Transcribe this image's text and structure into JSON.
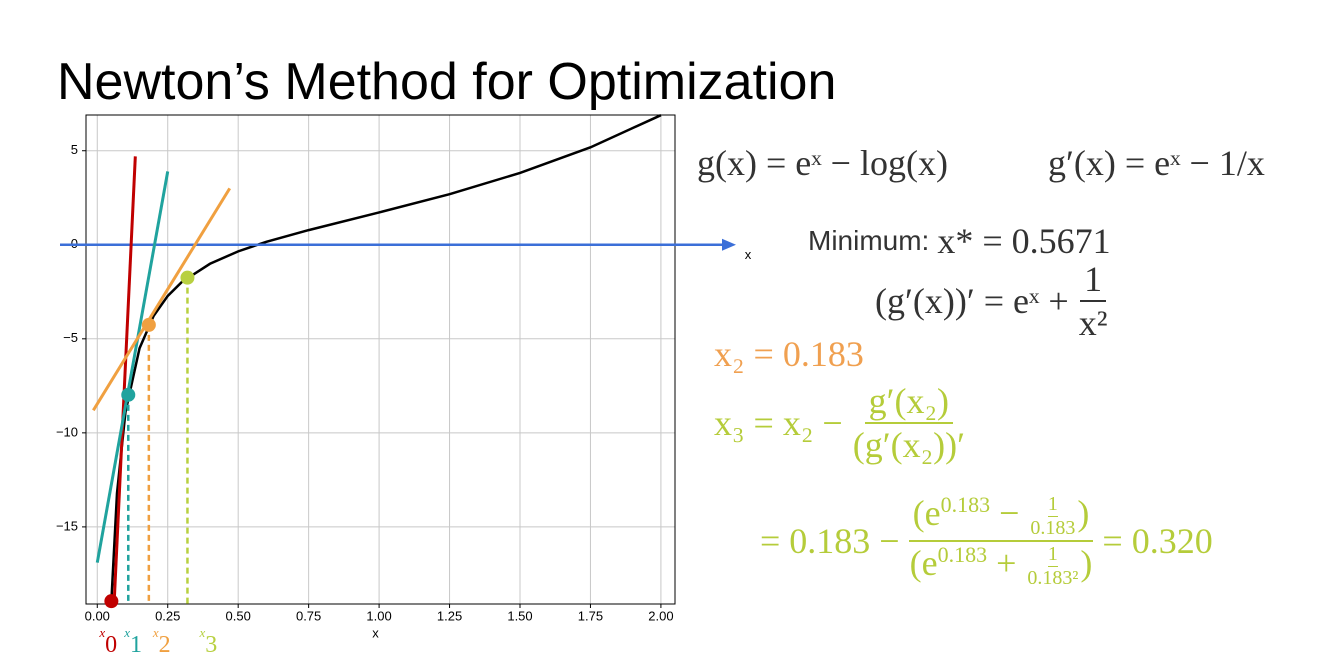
{
  "title": "Newton’s Method for Optimization",
  "chart_data": {
    "type": "line",
    "x_label": "x",
    "arrow_label": "x",
    "xlim": [
      -0.04,
      2.05
    ],
    "ylim": [
      -19.1,
      6.9
    ],
    "xticks": [
      {
        "value": 0,
        "label": "0.00"
      },
      {
        "value": 0.25,
        "label": "0.25"
      },
      {
        "value": 0.5,
        "label": "0.50"
      },
      {
        "value": 0.75,
        "label": "0.75"
      },
      {
        "value": 1,
        "label": "1.00"
      },
      {
        "value": 1.25,
        "label": "1.25"
      },
      {
        "value": 1.5,
        "label": "1.50"
      },
      {
        "value": 1.75,
        "label": "1.75"
      },
      {
        "value": 2,
        "label": "2.00"
      }
    ],
    "yticks": [
      5,
      0,
      {
        "value": -5,
        "label": "−5"
      },
      {
        "value": -10,
        "label": "−10"
      },
      {
        "value": -15,
        "label": "−15"
      }
    ],
    "grid": true,
    "series": [
      {
        "color": "#000000",
        "x": [
          0.05,
          0.07,
          0.1,
          0.15,
          0.2,
          0.25,
          0.3,
          0.4,
          0.5,
          0.6,
          0.75,
          1.0,
          1.25,
          1.5,
          1.75,
          2.0
        ],
        "values": [
          -18.95,
          -13.21,
          -8.9,
          -5.5,
          -3.78,
          -2.72,
          -1.98,
          -1.01,
          -0.35,
          0.16,
          0.78,
          1.72,
          2.69,
          3.82,
          5.18,
          6.89
        ]
      }
    ],
    "tangents": [
      {
        "color": "#c00000",
        "x": [
          0.06,
          0.135
        ],
        "values": [
          -19,
          4.7
        ]
      },
      {
        "color": "#20a39e",
        "x": [
          0.0,
          0.25
        ],
        "values": [
          -16.9,
          3.9
        ]
      },
      {
        "color": "#f0a040",
        "x": [
          -0.014,
          0.47
        ],
        "values": [
          -8.8,
          3.0
        ]
      }
    ],
    "points": [
      {
        "name": "x",
        "subscript": "0",
        "color": "#c00000",
        "x": 0.05,
        "value": -18.95
      },
      {
        "name": "x",
        "subscript": "1",
        "color": "#20a39e",
        "x": 0.11,
        "value": -7.98
      },
      {
        "name": "x",
        "subscript": "2",
        "color": "#f0a040",
        "x": 0.183,
        "value": -4.26
      },
      {
        "name": "x",
        "subscript": "3",
        "color": "#b8d040",
        "x": 0.32,
        "value": -1.75
      }
    ]
  },
  "equations": {
    "g": "g(x) = eˣ − log(x)",
    "g_prime": "g′(x) = eˣ − 1/x",
    "minimum_label": "Minimum:",
    "minimum_value": "x* = 0.5671",
    "second_lhs": "(g′(x))′ = eˣ +",
    "second_num": "1",
    "second_den": "x²",
    "x2": "x₂ = 0.183",
    "x3_lhs": "x₃ = x₂ −",
    "x3_num": "g′(x₂)",
    "x3_den": "(g′(x₂))′",
    "calc_lhs": "= 0.183 −",
    "calc_num": [
      "(e",
      "0.183",
      " − ",
      "1",
      "0.183",
      ")"
    ],
    "calc_den": [
      "(e",
      "0.183",
      " + ",
      "1",
      "0.183²",
      ")"
    ],
    "calc_rhs": "= 0.320"
  }
}
